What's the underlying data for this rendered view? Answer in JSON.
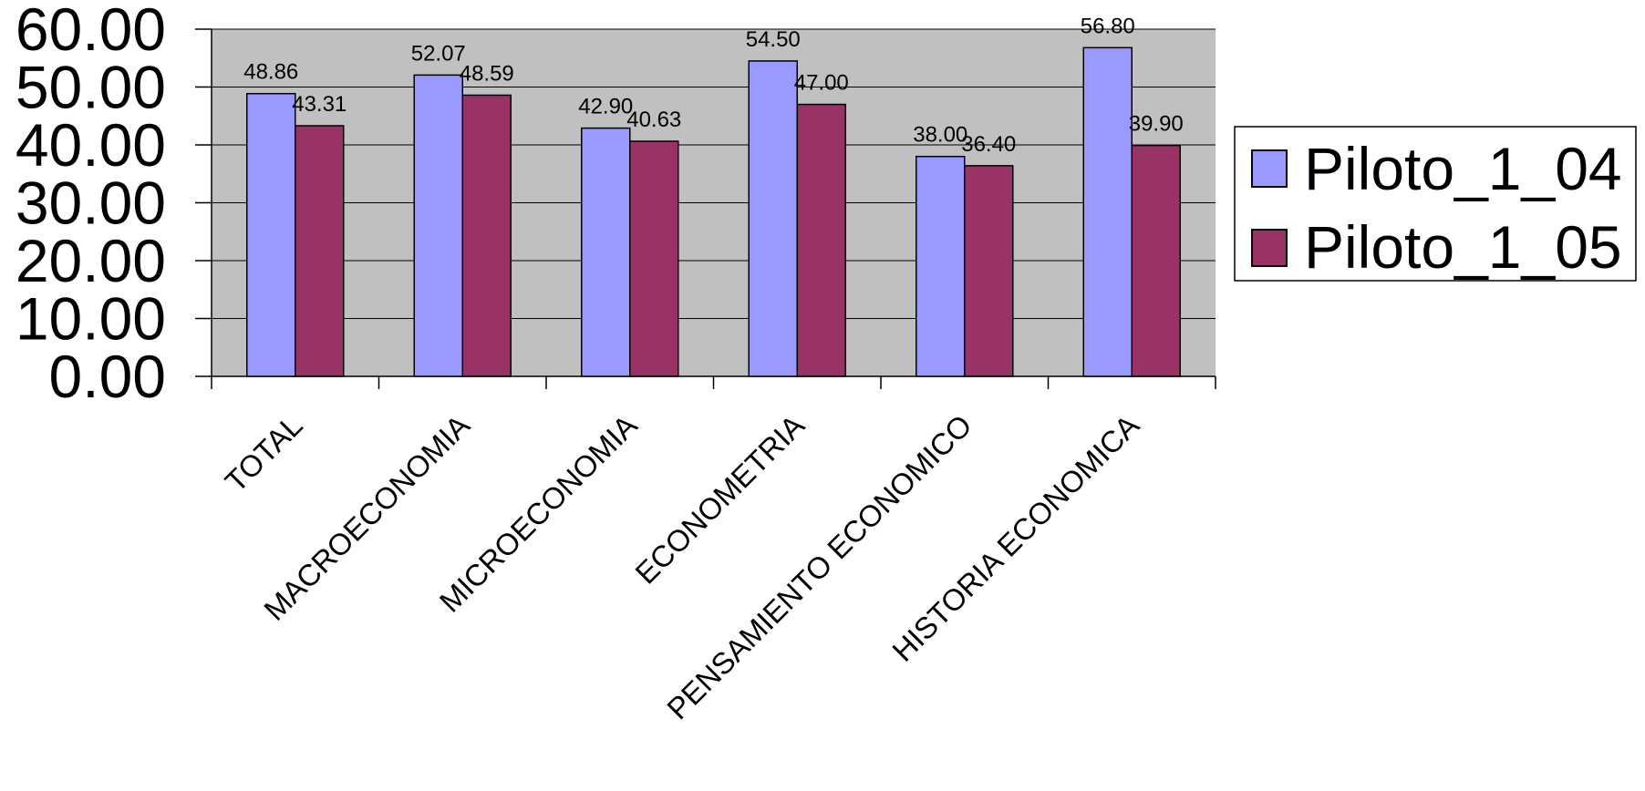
{
  "chart_data": {
    "type": "bar",
    "title": "",
    "xlabel": "",
    "ylabel": "",
    "categories": [
      "TOTAL",
      "MACROECONOMIA",
      "MICROECONOMIA",
      "ECONOMETRIA",
      "PENSAMIENTO ECONOMICO",
      "HISTORIA ECONOMICA"
    ],
    "series": [
      {
        "name": "Piloto_1_04",
        "color": "#9999ff",
        "values": [
          48.86,
          52.07,
          42.9,
          54.5,
          38.0,
          56.8
        ]
      },
      {
        "name": "Piloto_1_05",
        "color": "#993366",
        "values": [
          43.31,
          48.59,
          40.63,
          47.0,
          36.4,
          39.9
        ]
      }
    ],
    "ylim": [
      0,
      60
    ],
    "yticks": [
      "0.00",
      "10.00",
      "20.00",
      "30.00",
      "40.00",
      "50.00",
      "60.00"
    ],
    "value_decimals": 2,
    "grid": true,
    "plot_background": "#c0c0c0",
    "legend_position": "right"
  }
}
